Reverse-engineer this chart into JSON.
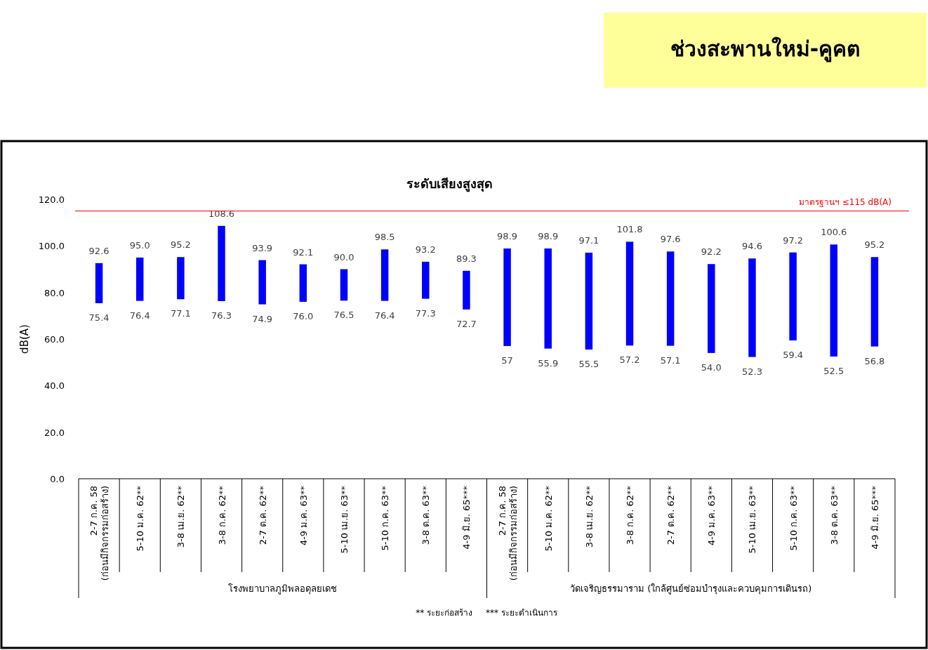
{
  "chart_data": {
    "type": "bar",
    "title": "ช่วงสะพานใหม่-คูคต",
    "subtitle": "ระดับเสียงสูงสุด",
    "ylabel": "dB(A)",
    "categories": [
      "2-7 ก.ค. 58\n(ก่อนมีกิจกรรมก่อสร้าง)",
      "5-10 ม.ค. 62**",
      "3-8 เม.ย. 62**",
      "3-8 ก.ค. 62**",
      "2-7 ต.ค. 62**",
      "4-9 ม.ค. 63**",
      "5-10 เม.ย. 63**",
      "5-10 ก.ค. 63**",
      "3-8 ต.ค. 63**",
      "4-9 มิ.ย. 65***",
      "2-7 ก.ค. 58\n(ก่อนมีกิจกรรมก่อสร้าง)",
      "5-10 ม.ค. 62**",
      "3-8 เม.ย. 62**",
      "3-8 ก.ค. 62**",
      "2-7 ต.ค. 62**",
      "4-9 ม.ค. 63**",
      "5-10 เม.ย. 63**",
      "5-10 ก.ค. 63**",
      "3-8 ต.ค. 63**",
      "4-9 มิ.ย. 65***"
    ],
    "base": [
      75.4,
      76.4,
      77.1,
      76.3,
      74.9,
      76.0,
      76.5,
      76.4,
      77.3,
      72.7,
      57,
      55.9,
      55.5,
      57.2,
      57.1,
      54.0,
      52.3,
      59.4,
      52.5,
      56.8
    ],
    "values": [
      17.2,
      18.6,
      18.1,
      32.3,
      19.0,
      16.1,
      13.5,
      22.1,
      15.9,
      16.6,
      41.9,
      43.0,
      41.6,
      44.6,
      40.5,
      38.2,
      42.3,
      37.8,
      48.1,
      38.4
    ],
    "value_labels": [
      "92.6",
      "95.0",
      "95.2",
      "108.6",
      "93.9",
      "92.1",
      "90.0",
      "98.5",
      "93.2",
      "89.3",
      "98.9",
      "98.9",
      "97.1",
      "101.8",
      "97.6",
      "92.2",
      "94.6",
      "97.2",
      "100.6",
      "95.2"
    ],
    "color": "#0000ff",
    "ylim": [
      0,
      120
    ],
    "yticks": [
      {
        "value": 0,
        "label": "0.0"
      },
      {
        "value": 20,
        "label": "20.0"
      },
      {
        "value": 40,
        "label": "40.0"
      },
      {
        "value": 60,
        "label": "60.0"
      },
      {
        "value": 80,
        "label": "80.0"
      },
      {
        "value": 100,
        "label": "100.0"
      },
      {
        "value": 120,
        "label": "120.0"
      }
    ],
    "ref_lines": [
      {
        "axis": "y",
        "value": 115,
        "label": "มาตรฐานฯ ≤115 dB(A)",
        "color": "#ff0000"
      }
    ],
    "grid": false,
    "annotations": [
      "โรงพยาบาลภูมิพลอดุลยเดช",
      "วัดเจริญธรรมาราม (ใกล้ศูนย์ซ่อมบำรุงและควบคุมการเดินรถ)",
      "** ระยะก่อสร้าง     *** ระยะดำเนินการ",
      {
        "text": "75.4",
        "y": 75.4
      },
      {
        "text": "76.4",
        "y": 76.4
      },
      {
        "text": "77.1",
        "y": 77.1
      },
      {
        "text": "76.3",
        "y": 76.3
      },
      {
        "text": "74.9",
        "y": 74.9
      },
      {
        "text": "76.0",
        "y": 76.0
      },
      {
        "text": "76.5",
        "y": 76.5
      },
      {
        "text": "76.4",
        "y": 76.4
      },
      {
        "text": "77.3",
        "y": 77.3
      },
      {
        "text": "72.7",
        "y": 72.7
      },
      {
        "text": "57",
        "y": 57
      },
      {
        "text": "55.9",
        "y": 55.9
      },
      {
        "text": "55.5",
        "y": 55.5
      },
      {
        "text": "57.2",
        "y": 57.2
      },
      {
        "text": "57.1",
        "y": 57.1
      },
      {
        "text": "54.0",
        "y": 54.0
      },
      {
        "text": "52.3",
        "y": 52.3
      },
      {
        "text": "59.4",
        "y": 59.4
      },
      {
        "text": "52.5",
        "y": 52.5
      },
      {
        "text": "56.8",
        "y": 56.8
      }
    ]
  }
}
